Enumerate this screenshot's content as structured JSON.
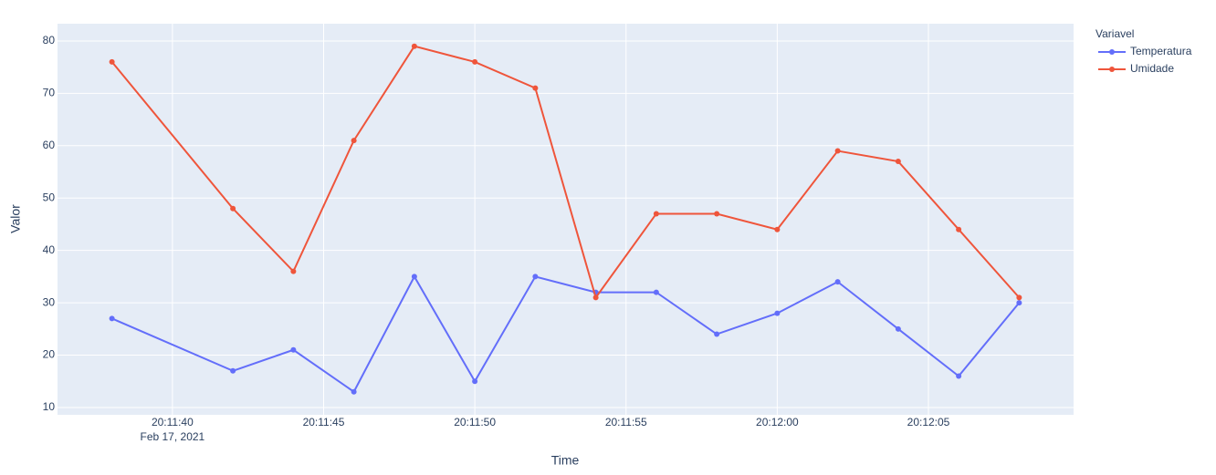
{
  "chart_data": {
    "type": "line",
    "x_label": "Time",
    "y_label": "Valor",
    "legend_title": "Variavel",
    "legend_position": "right",
    "x": [
      "2021-02-17 20:11:38",
      "2021-02-17 20:11:42",
      "2021-02-17 20:11:44",
      "2021-02-17 20:11:46",
      "2021-02-17 20:11:48",
      "2021-02-17 20:11:50",
      "2021-02-17 20:11:52",
      "2021-02-17 20:11:54",
      "2021-02-17 20:11:56",
      "2021-02-17 20:11:58",
      "2021-02-17 20:12:00",
      "2021-02-17 20:12:02",
      "2021-02-17 20:12:04",
      "2021-02-17 20:12:06",
      "2021-02-17 20:12:08"
    ],
    "series": [
      {
        "name": "Temperatura",
        "color": "#636efa",
        "values": [
          27,
          17,
          21,
          13,
          35,
          15,
          35,
          32,
          32,
          24,
          28,
          34,
          25,
          16,
          30
        ]
      },
      {
        "name": "Umidade",
        "color": "#ef553b",
        "values": [
          76,
          48,
          36,
          61,
          79,
          76,
          71,
          31,
          47,
          47,
          44,
          59,
          57,
          44,
          31
        ]
      }
    ],
    "xlim": [
      "2021-02-17 20:11:36.2",
      "2021-02-17 20:12:09.8"
    ],
    "xticks": [
      {
        "value": "2021-02-17 20:11:40",
        "label": "20:11:40"
      },
      {
        "value": "2021-02-17 20:11:45",
        "label": "20:11:45"
      },
      {
        "value": "2021-02-17 20:11:50",
        "label": "20:11:50"
      },
      {
        "value": "2021-02-17 20:11:55",
        "label": "20:11:55"
      },
      {
        "value": "2021-02-17 20:12:00",
        "label": "20:12:00"
      },
      {
        "value": "2021-02-17 20:12:05",
        "label": "20:12:05"
      }
    ],
    "x_date_label": "Feb 17, 2021",
    "ylim": [
      8.6,
      83.3
    ],
    "yticks": [
      10,
      20,
      30,
      40,
      50,
      60,
      70,
      80
    ],
    "grid": true
  }
}
